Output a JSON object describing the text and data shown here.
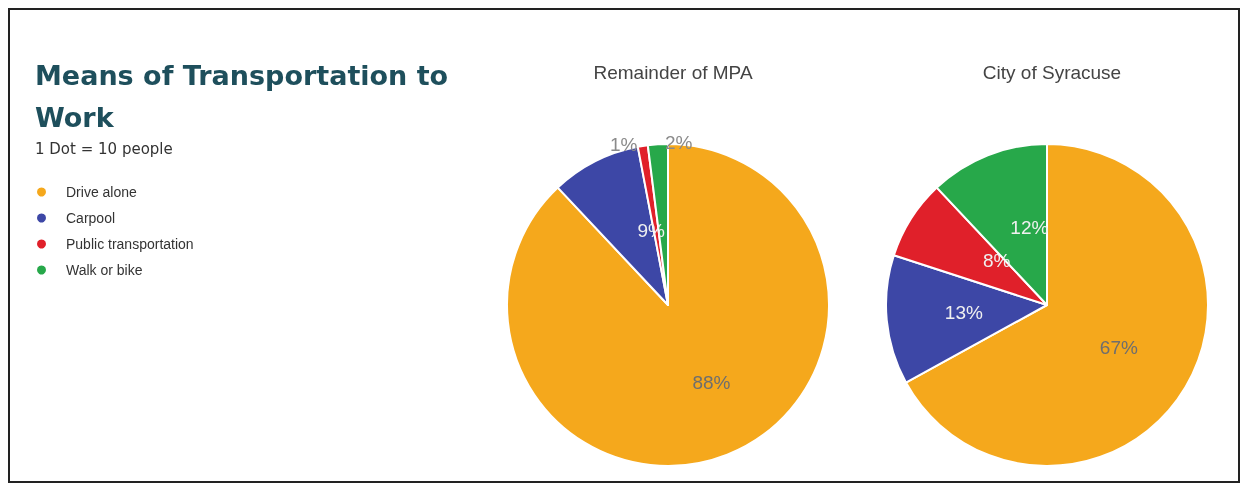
{
  "chart_data": [
    {
      "type": "other",
      "title": "Means of Transportation to Work",
      "annotations": [
        "1 Dot = 10 people"
      ]
    },
    {
      "type": "pie",
      "title": "Remainder of MPA",
      "categories": [
        "Drive alone",
        "Carpool",
        "Public transportation",
        "Walk or bike"
      ],
      "values": [
        88,
        9,
        1,
        2
      ],
      "value_labels": [
        "88%",
        "9%",
        "1%",
        "2%"
      ],
      "colors": [
        "#f5a81c",
        "#3d47a6",
        "#e0202a",
        "#27a84a"
      ],
      "legend": "left"
    },
    {
      "type": "pie",
      "title": "City of Syracuse",
      "categories": [
        null,
        null,
        null,
        null
      ],
      "values": [
        67,
        13,
        8,
        12
      ],
      "value_labels": [
        "67%",
        "13%",
        "8%",
        "12%"
      ],
      "colors": [
        "#f5a81c",
        "#3d47a6",
        "#e0202a",
        "#27a84a"
      ]
    }
  ]
}
